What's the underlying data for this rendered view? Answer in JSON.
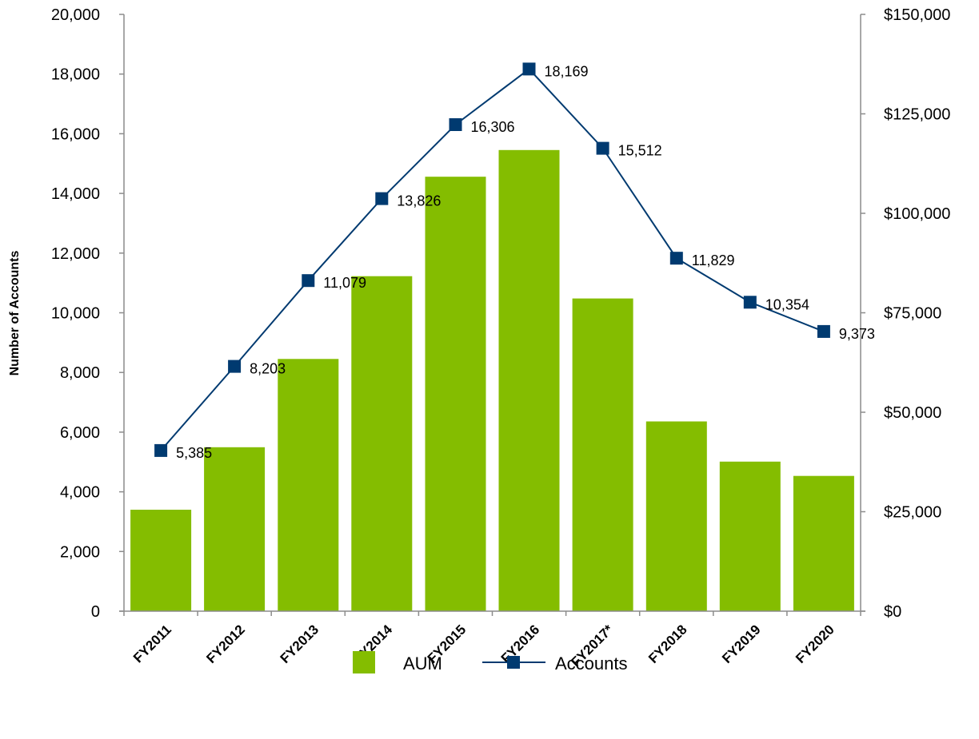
{
  "chart_data": {
    "type": "bar",
    "categories": [
      "FY2011",
      "FY2012",
      "FY2013",
      "FY2014",
      "FY2015",
      "FY2016",
      "FY2017*",
      "FY2018",
      "FY2019",
      "FY2020"
    ],
    "series": [
      {
        "name": "AUM",
        "type": "bar",
        "axis": "right",
        "color": "#84BD00",
        "values": [
          25500,
          41200,
          63400,
          84200,
          109200,
          115900,
          78600,
          47700,
          37600,
          34000
        ]
      },
      {
        "name": "Accounts",
        "type": "line",
        "axis": "left",
        "color": "#003A70",
        "marker": "square",
        "values": [
          5385,
          8203,
          11079,
          13826,
          16306,
          18169,
          15512,
          11829,
          10354,
          9373
        ],
        "labels": [
          "5,385",
          "8,203",
          "11,079",
          "13,826",
          "16,306",
          "18,169",
          "15,512",
          "11,829",
          "10,354",
          "9,373"
        ]
      }
    ],
    "ylabel": "Number of Accounts",
    "ylim": [
      0,
      20000
    ],
    "y_ticks": [
      "0",
      "2,000",
      "4,000",
      "6,000",
      "8,000",
      "10,000",
      "12,000",
      "14,000",
      "16,000",
      "18,000",
      "20,000"
    ],
    "y2lim": [
      0,
      150000
    ],
    "y2_ticks": [
      "$0",
      "$25,000",
      "$50,000",
      "$75,000",
      "$100,000",
      "$125,000",
      "$150,000"
    ],
    "grid": false,
    "legend": "bottom-center"
  }
}
